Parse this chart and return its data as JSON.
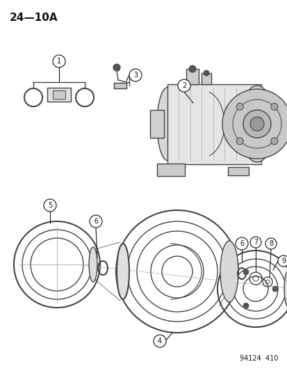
{
  "title": "24—10A",
  "footer": "94124  410",
  "bg_color": "#ffffff",
  "fig_width": 4.14,
  "fig_height": 5.33,
  "dpi": 100,
  "gray": "#444444",
  "dark": "#111111",
  "light_gray": "#bbbbbb",
  "mid_gray": "#888888"
}
